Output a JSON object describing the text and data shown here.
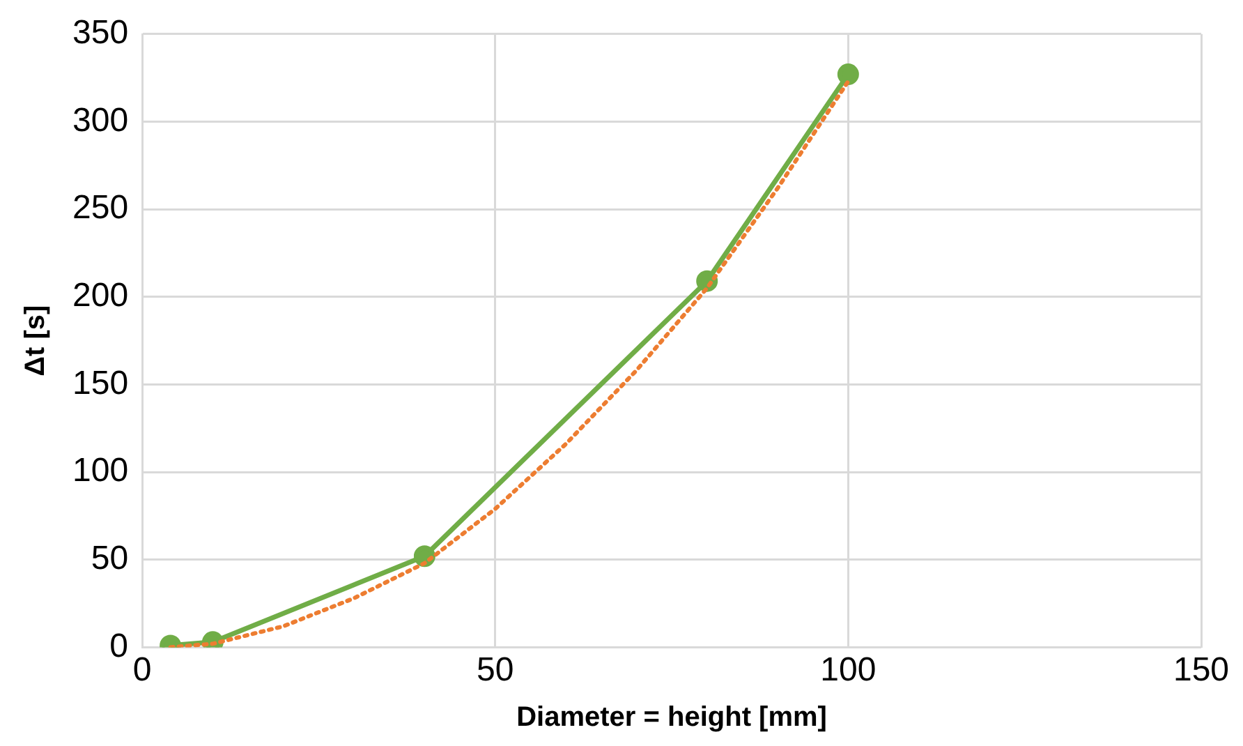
{
  "chart_data": {
    "type": "line",
    "xlabel": "Diameter = height [mm]",
    "ylabel": "Δt [s]",
    "xlim": [
      0,
      150
    ],
    "xticks": [
      0,
      50,
      100,
      150
    ],
    "ylim": [
      0,
      350
    ],
    "yticks": [
      0,
      50,
      100,
      150,
      200,
      250,
      300,
      350
    ],
    "grid": true,
    "legend": false,
    "series": [
      {
        "color": "#70ad47",
        "marker": "circle",
        "line_style": "solid",
        "x": [
          4,
          10,
          40,
          80,
          100
        ],
        "values": [
          1,
          3,
          52,
          209,
          327
        ]
      },
      {
        "type": "line",
        "color": "#ed7d31",
        "marker": "none",
        "line_style": "dotted",
        "x": [
          4,
          10,
          20,
          30,
          40,
          50,
          60,
          70,
          80,
          90,
          100
        ],
        "values": [
          0,
          2,
          12,
          28,
          48,
          79,
          116,
          158,
          205,
          262,
          323
        ]
      }
    ]
  }
}
